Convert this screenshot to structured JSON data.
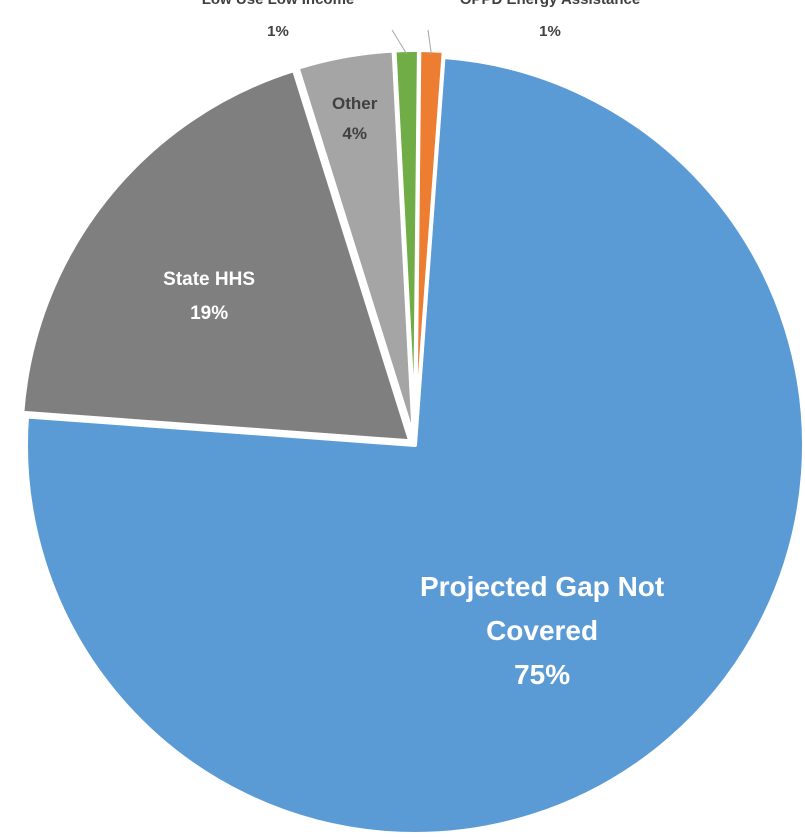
{
  "chart_data": {
    "type": "pie",
    "title": "",
    "legend": "none",
    "slices": [
      {
        "name": "Projected Gap Not Covered",
        "value": 75,
        "label": "75%",
        "color": "#5b9bd5",
        "label_color": "#ffffff"
      },
      {
        "name": "State HHS",
        "value": 19,
        "label": "19%",
        "color": "#7f7f7f",
        "label_color": "#ffffff"
      },
      {
        "name": "Other",
        "value": 4,
        "label": "4%",
        "color": "#a5a5a5",
        "label_color": "#404040"
      },
      {
        "name": "Low Use Low Income",
        "value": 1,
        "label": "1%",
        "color": "#70ad47",
        "label_color": "#404040"
      },
      {
        "name": "OPPD Energy Assistance",
        "value": 1,
        "label": "1%",
        "color": "#ed7d31",
        "label_color": "#404040"
      }
    ]
  }
}
